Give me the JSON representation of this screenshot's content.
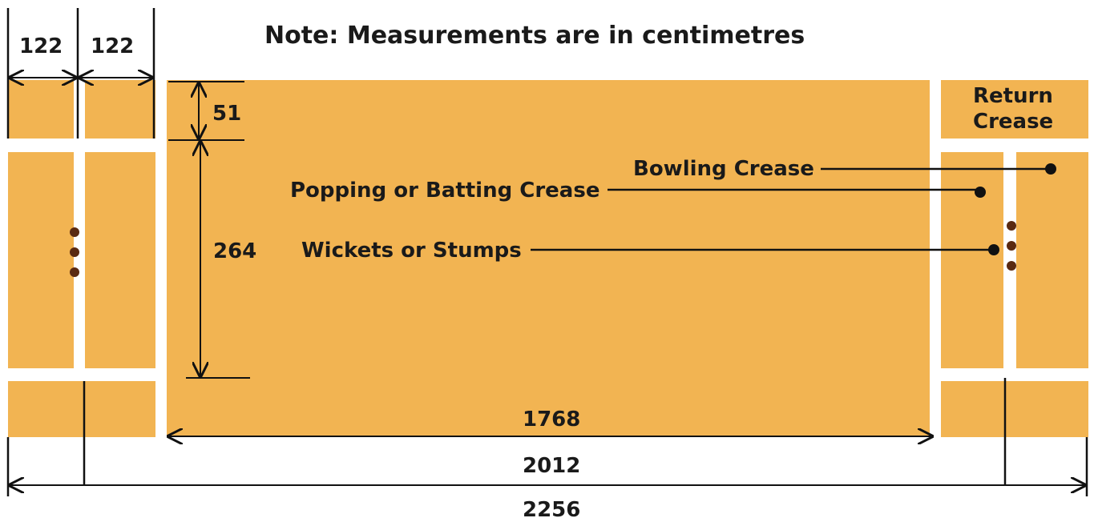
{
  "note": "Note: Measurements are in centimetres",
  "dimensions": {
    "return_crease_left": "122",
    "return_crease_right": "122",
    "bowling_to_popping_top": "51",
    "wicket_width_area": "264",
    "popping_to_popping": "1768",
    "bowling_to_bowling": "2012",
    "total_length": "2256"
  },
  "labels": {
    "return_crease_line1": "Return",
    "return_crease_line2": "Crease",
    "bowling_crease": "Bowling Crease",
    "popping_crease": "Popping or Batting Crease",
    "wickets": "Wickets or Stumps"
  },
  "colors": {
    "pitch": "#f2b452",
    "lines": "#111111",
    "crease": "#ffffff",
    "stump": "#5a2a12"
  }
}
